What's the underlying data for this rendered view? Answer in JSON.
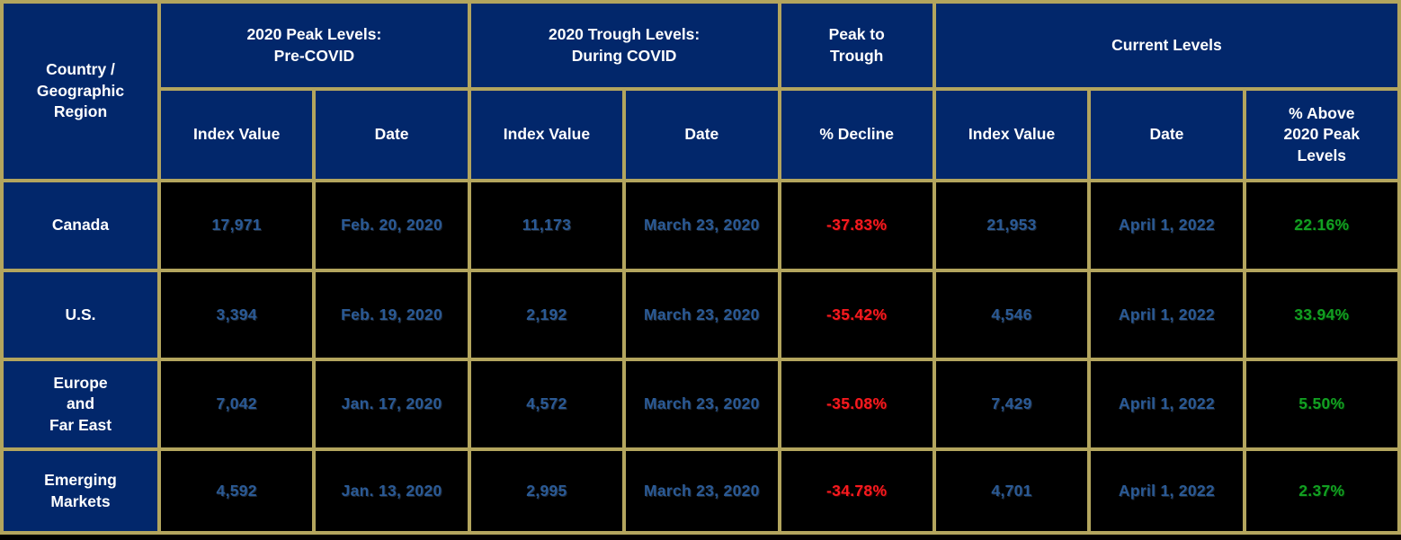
{
  "colors": {
    "header_bg": "#02276b",
    "border_gold": "#b3a55e",
    "cell_bg": "#000000",
    "header_text": "#ffffff",
    "value_blue": "#2a5a96",
    "decline_red": "#f81a1f",
    "gain_green": "#12a022"
  },
  "table": {
    "corner_header": "Country /\nGeographic\nRegion",
    "groups": {
      "peak": "2020 Peak Levels:\nPre-COVID",
      "trough": "2020 Trough Levels:\nDuring COVID",
      "peak_to_trough": "Peak to\nTrough",
      "current": "Current Levels"
    },
    "sub_headers": {
      "peak_index": "Index Value",
      "peak_date": "Date",
      "trough_index": "Index Value",
      "trough_date": "Date",
      "decline": "% Decline",
      "current_index": "Index Value",
      "current_date": "Date",
      "above_peak": "% Above\n2020 Peak\nLevels"
    },
    "rows": [
      {
        "region": "Canada",
        "peak_value": "17,971",
        "peak_date": "Feb. 20, 2020",
        "trough_value": "11,173",
        "trough_date": "March 23, 2020",
        "decline": "-37.83%",
        "current_value": "21,953",
        "current_date": "April 1, 2022",
        "above_peak": "22.16%"
      },
      {
        "region": "U.S.",
        "peak_value": "3,394",
        "peak_date": "Feb. 19, 2020",
        "trough_value": "2,192",
        "trough_date": "March 23, 2020",
        "decline": "-35.42%",
        "current_value": "4,546",
        "current_date": "April 1, 2022",
        "above_peak": "33.94%"
      },
      {
        "region": "Europe\nand\nFar East",
        "peak_value": "7,042",
        "peak_date": "Jan. 17, 2020",
        "trough_value": "4,572",
        "trough_date": "March 23, 2020",
        "decline": "-35.08%",
        "current_value": "7,429",
        "current_date": "April 1, 2022",
        "above_peak": "5.50%"
      },
      {
        "region": "Emerging\nMarkets",
        "peak_value": "4,592",
        "peak_date": "Jan. 13, 2020",
        "trough_value": "2,995",
        "trough_date": "March 23, 2020",
        "decline": "-34.78%",
        "current_value": "4,701",
        "current_date": "April 1, 2022",
        "above_peak": "2.37%"
      }
    ]
  }
}
